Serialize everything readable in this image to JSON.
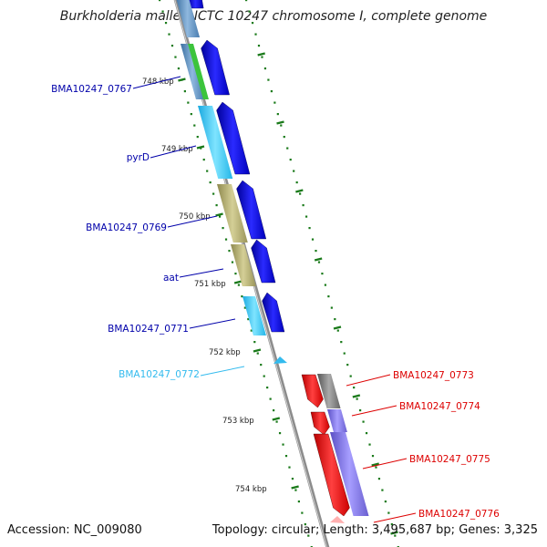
{
  "map": {
    "title": "Burkholderia mallei NCTC 10247 chromosome I, complete genome",
    "accession_label": "Accession: NC_009080",
    "topology_label": "Topology: circular;",
    "length_label": "Length: 3,495,687 bp;",
    "genes_label": "Genes: 3,325"
  },
  "ticks": [
    "748 kbp",
    "749 kbp",
    "750 kbp",
    "751 kbp",
    "752 kbp",
    "753 kbp",
    "754 kbp"
  ],
  "genes_left": [
    {
      "name": "BMA10247_0767",
      "color": "#0000aa"
    },
    {
      "name": "pyrD",
      "color": "#0000aa"
    },
    {
      "name": "BMA10247_0769",
      "color": "#0000aa"
    },
    {
      "name": "aat",
      "color": "#0000aa"
    },
    {
      "name": "BMA10247_0771",
      "color": "#0000aa"
    },
    {
      "name": "BMA10247_0772",
      "color": "#33bbee"
    }
  ],
  "genes_right": [
    {
      "name": "BMA10247_0773",
      "color": "#dd0000"
    },
    {
      "name": "BMA10247_0774",
      "color": "#dd0000"
    },
    {
      "name": "BMA10247_0775",
      "color": "#dd0000"
    },
    {
      "name": "BMA10247_0776",
      "color": "#dd0000"
    }
  ],
  "colors": {
    "backbone": "#8c8c8c",
    "ticks": "#1a7a1a",
    "forward_cds": "#0000ee",
    "reverse_cds": "#ee0000"
  }
}
